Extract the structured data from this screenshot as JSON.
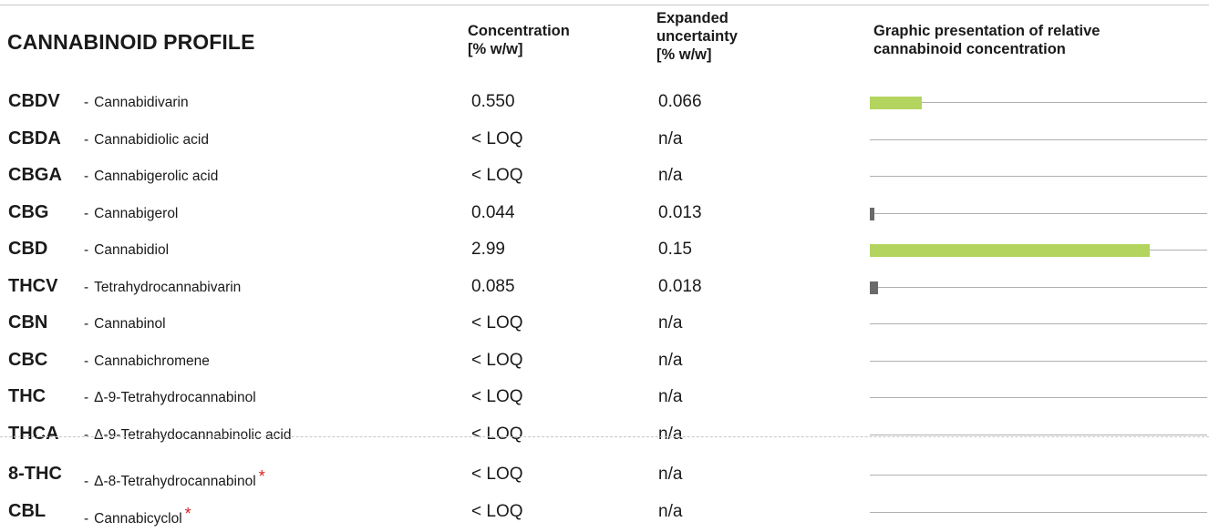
{
  "title": "CANNABINOID PROFILE",
  "headers": {
    "concentration": "Concentration\n[% w/w]",
    "uncertainty": "Expanded\nuncertainty\n[% w/w]",
    "graphic": "Graphic presentation of relative\ncannabinoid concentration"
  },
  "graph_scale_max": 3.6,
  "rows": [
    {
      "code": "CBDV",
      "name": "Cannabidivarin",
      "concentration": "0.550",
      "uncertainty": "0.066",
      "value": 0.55,
      "bar_color": "green",
      "star": false
    },
    {
      "code": "CBDA",
      "name": "Cannabidiolic acid",
      "concentration": "< LOQ",
      "uncertainty": "n/a",
      "value": 0,
      "bar_color": "green",
      "star": false
    },
    {
      "code": "CBGA",
      "name": "Cannabigerolic acid",
      "concentration": "< LOQ",
      "uncertainty": "n/a",
      "value": 0,
      "bar_color": "green",
      "star": false
    },
    {
      "code": "CBG",
      "name": "Cannabigerol",
      "concentration": "0.044",
      "uncertainty": "0.013",
      "value": 0.044,
      "bar_color": "grey",
      "star": false
    },
    {
      "code": "CBD",
      "name": "Cannabidiol",
      "concentration": "2.99",
      "uncertainty": "0.15",
      "value": 2.99,
      "bar_color": "green",
      "star": false
    },
    {
      "code": "THCV",
      "name": "Tetrahydrocannabivarin",
      "concentration": "0.085",
      "uncertainty": "0.018",
      "value": 0.085,
      "bar_color": "grey",
      "star": false
    },
    {
      "code": "CBN",
      "name": "Cannabinol",
      "concentration": "< LOQ",
      "uncertainty": "n/a",
      "value": 0,
      "bar_color": "green",
      "star": false
    },
    {
      "code": "CBC",
      "name": "Cannabichromene",
      "concentration": "< LOQ",
      "uncertainty": "n/a",
      "value": 0,
      "bar_color": "green",
      "star": false
    },
    {
      "code": "THC",
      "name": "Δ-9-Tetrahydrocannabinol",
      "concentration": "< LOQ",
      "uncertainty": "n/a",
      "value": 0,
      "bar_color": "green",
      "star": false
    },
    {
      "code": "THCA",
      "name": "Δ-9-Tetrahydocannabinolic acid",
      "concentration": "< LOQ",
      "uncertainty": "n/a",
      "value": 0,
      "bar_color": "green",
      "star": false
    },
    {
      "code": "8-THC",
      "name": "Δ-8-Tetrahydrocannabinol",
      "concentration": "< LOQ",
      "uncertainty": "n/a",
      "value": 0,
      "bar_color": "green",
      "star": true
    },
    {
      "code": "CBL",
      "name": "Cannabicyclol",
      "concentration": "< LOQ",
      "uncertainty": "n/a",
      "value": 0,
      "bar_color": "green",
      "star": true
    }
  ],
  "star_symbol": "*",
  "dash": "-"
}
